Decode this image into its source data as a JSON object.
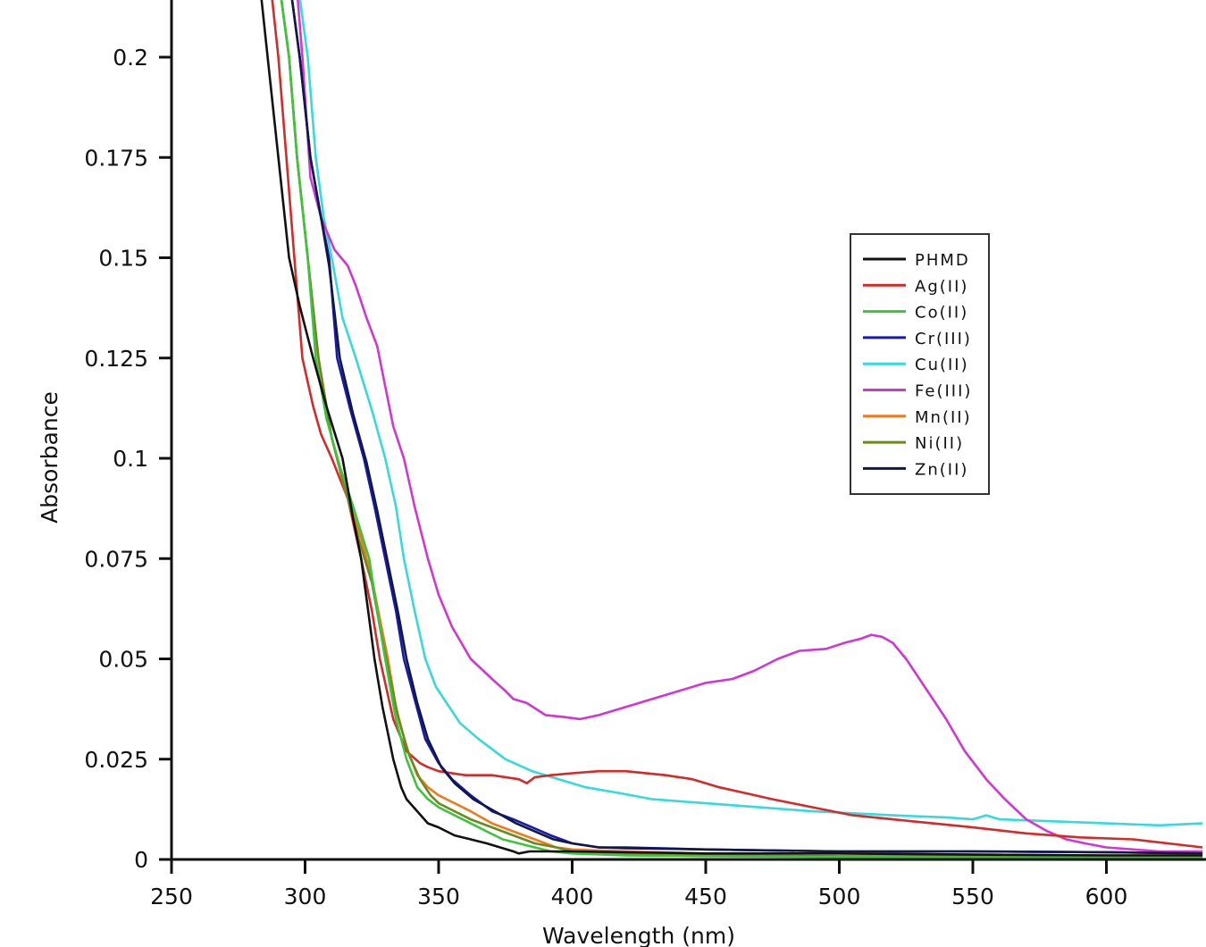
{
  "chart_data": {
    "type": "line",
    "title": "",
    "xlabel": "Wavelength (nm)",
    "ylabel": "Absorbance",
    "xlim": [
      250,
      636
    ],
    "ylim": [
      0,
      0.213
    ],
    "x_ticks": [
      250,
      300,
      350,
      400,
      450,
      500,
      550,
      600
    ],
    "x_tick_labels": [
      "250",
      "300",
      "350",
      "400",
      "450",
      "500",
      "550",
      "600"
    ],
    "y_ticks": [
      0,
      0.025,
      0.05,
      0.075,
      0.1,
      0.125,
      0.15,
      0.175,
      0.2
    ],
    "y_tick_labels": [
      "0",
      "0.025",
      "0.05",
      "0.075",
      "0.1",
      "0.125",
      "0.15",
      "0.175",
      "0.2"
    ],
    "grid": false,
    "legend_position": "upper right (inside plot)",
    "series": [
      {
        "name": "PHMD",
        "color": "#111111",
        "x": [
          282,
          286,
          290,
          294,
          298,
          303,
          308,
          314,
          318,
          321,
          324,
          326,
          329,
          333,
          336,
          338,
          342,
          346,
          350,
          356,
          362,
          368,
          373,
          378,
          380,
          384,
          390,
          400,
          450,
          500,
          550,
          600,
          636
        ],
        "y": [
          0.225,
          0.2,
          0.175,
          0.15,
          0.138,
          0.125,
          0.113,
          0.1,
          0.085,
          0.075,
          0.06,
          0.05,
          0.038,
          0.025,
          0.018,
          0.015,
          0.012,
          0.009,
          0.008,
          0.006,
          0.005,
          0.004,
          0.003,
          0.002,
          0.0015,
          0.002,
          0.002,
          0.002,
          0.0015,
          0.0015,
          0.0012,
          0.001,
          0.001
        ]
      },
      {
        "name": "Ag(II)",
        "color": "#d42a2a",
        "x": [
          286,
          290,
          293,
          296,
          299,
          303,
          306,
          310,
          316,
          321,
          325,
          328,
          333,
          338,
          343,
          346,
          350,
          360,
          370,
          380,
          383,
          386,
          392,
          400,
          410,
          420,
          435,
          445,
          455,
          465,
          475,
          490,
          505,
          520,
          535,
          550,
          570,
          590,
          610,
          636
        ],
        "y": [
          0.225,
          0.2,
          0.175,
          0.15,
          0.125,
          0.113,
          0.106,
          0.1,
          0.09,
          0.075,
          0.062,
          0.05,
          0.035,
          0.027,
          0.024,
          0.023,
          0.022,
          0.021,
          0.021,
          0.02,
          0.019,
          0.0205,
          0.021,
          0.0215,
          0.022,
          0.022,
          0.021,
          0.02,
          0.018,
          0.0165,
          0.015,
          0.013,
          0.011,
          0.01,
          0.009,
          0.008,
          0.0065,
          0.0055,
          0.005,
          0.003
        ]
      },
      {
        "name": "Co(II)",
        "color": "#3cc43c",
        "x": [
          289,
          294,
          297,
          301,
          304,
          308,
          313,
          318,
          324,
          327,
          330,
          334,
          338,
          342,
          346,
          350,
          356,
          362,
          368,
          374,
          380,
          386,
          392,
          400,
          420,
          450,
          500,
          550,
          600,
          636
        ],
        "y": [
          0.225,
          0.2,
          0.175,
          0.15,
          0.125,
          0.11,
          0.098,
          0.088,
          0.075,
          0.062,
          0.05,
          0.035,
          0.025,
          0.018,
          0.015,
          0.013,
          0.011,
          0.009,
          0.007,
          0.005,
          0.004,
          0.003,
          0.002,
          0.0015,
          0.001,
          0.0008,
          0.0006,
          0.0005,
          0.0005,
          0.0005
        ]
      },
      {
        "name": "Cr(III)",
        "color": "#1a1aa8",
        "x": [
          293,
          298,
          302,
          306,
          309,
          312,
          317,
          322,
          326,
          330,
          334,
          337,
          341,
          345,
          350,
          355,
          362,
          370,
          378,
          385,
          392,
          400,
          410,
          420,
          450,
          500,
          550,
          600,
          636
        ],
        "y": [
          0.225,
          0.2,
          0.175,
          0.16,
          0.15,
          0.125,
          0.112,
          0.1,
          0.088,
          0.075,
          0.062,
          0.05,
          0.04,
          0.03,
          0.024,
          0.02,
          0.016,
          0.012,
          0.01,
          0.008,
          0.006,
          0.004,
          0.003,
          0.003,
          0.0025,
          0.002,
          0.002,
          0.0018,
          0.0015
        ]
      },
      {
        "name": "Cu(II)",
        "color": "#36dada",
        "x": [
          296,
          301,
          304,
          307,
          310,
          314,
          319,
          325,
          330,
          334,
          337,
          341,
          345,
          349,
          352,
          358,
          365,
          375,
          385,
          395,
          405,
          418,
          430,
          450,
          470,
          490,
          520,
          540,
          550,
          555,
          560,
          580,
          600,
          620,
          636
        ],
        "y": [
          0.225,
          0.2,
          0.175,
          0.16,
          0.15,
          0.135,
          0.125,
          0.112,
          0.1,
          0.088,
          0.075,
          0.062,
          0.05,
          0.043,
          0.04,
          0.034,
          0.03,
          0.025,
          0.022,
          0.02,
          0.018,
          0.0165,
          0.015,
          0.014,
          0.013,
          0.012,
          0.011,
          0.0105,
          0.01,
          0.011,
          0.01,
          0.0095,
          0.009,
          0.0085,
          0.009
        ]
      },
      {
        "name": "Fe(III)",
        "color": "#d236d2",
        "x": [
          296,
          299,
          302,
          306,
          311,
          316,
          319,
          323,
          327,
          330,
          333,
          337,
          341,
          346,
          350,
          355,
          362,
          370,
          375,
          378,
          383,
          390,
          397,
          403,
          410,
          420,
          430,
          440,
          450,
          460,
          468,
          477,
          485,
          495,
          502,
          508,
          512,
          516,
          520,
          525,
          532,
          540,
          547,
          555,
          562,
          570,
          578,
          585,
          592,
          600,
          610,
          620,
          636
        ],
        "y": [
          0.225,
          0.2,
          0.17,
          0.16,
          0.152,
          0.148,
          0.143,
          0.135,
          0.128,
          0.118,
          0.108,
          0.1,
          0.088,
          0.075,
          0.066,
          0.058,
          0.05,
          0.045,
          0.042,
          0.04,
          0.039,
          0.036,
          0.0355,
          0.035,
          0.036,
          0.038,
          0.04,
          0.042,
          0.044,
          0.045,
          0.047,
          0.05,
          0.052,
          0.0525,
          0.054,
          0.055,
          0.056,
          0.0555,
          0.054,
          0.05,
          0.043,
          0.035,
          0.027,
          0.02,
          0.015,
          0.01,
          0.007,
          0.005,
          0.004,
          0.003,
          0.0025,
          0.002,
          0.002
        ]
      },
      {
        "name": "Mn(II)",
        "color": "#f07a1e",
        "x": [
          289,
          294,
          297,
          301,
          305,
          310,
          315,
          321,
          325,
          328,
          331,
          334,
          338,
          342,
          346,
          350,
          356,
          362,
          370,
          378,
          386,
          394,
          400,
          420,
          450,
          500,
          550,
          600,
          636
        ],
        "y": [
          0.225,
          0.2,
          0.175,
          0.15,
          0.125,
          0.105,
          0.092,
          0.08,
          0.07,
          0.06,
          0.05,
          0.038,
          0.028,
          0.021,
          0.018,
          0.016,
          0.014,
          0.012,
          0.009,
          0.007,
          0.005,
          0.003,
          0.0025,
          0.002,
          0.0015,
          0.0015,
          0.0012,
          0.001,
          0.001
        ]
      },
      {
        "name": "Ni(II)",
        "color": "#6b8a1e",
        "x": [
          289,
          294,
          297,
          301,
          305,
          310,
          314,
          320,
          325,
          328,
          331,
          335,
          339,
          343,
          347,
          350,
          356,
          362,
          370,
          378,
          386,
          394,
          400,
          420,
          450,
          500,
          550,
          600,
          636
        ],
        "y": [
          0.225,
          0.2,
          0.175,
          0.15,
          0.125,
          0.105,
          0.095,
          0.08,
          0.069,
          0.058,
          0.048,
          0.035,
          0.026,
          0.02,
          0.016,
          0.014,
          0.012,
          0.01,
          0.008,
          0.006,
          0.004,
          0.003,
          0.002,
          0.0015,
          0.001,
          0.0008,
          0.0008,
          0.0006,
          0.0006
        ]
      },
      {
        "name": "Zn(II)",
        "color": "#101848",
        "x": [
          293,
          298,
          302,
          306,
          309,
          313,
          318,
          323,
          327,
          331,
          335,
          338,
          342,
          346,
          351,
          356,
          363,
          371,
          379,
          386,
          393,
          400,
          410,
          420,
          450,
          500,
          550,
          600,
          636
        ],
        "y": [
          0.225,
          0.2,
          0.175,
          0.16,
          0.148,
          0.125,
          0.111,
          0.099,
          0.087,
          0.074,
          0.061,
          0.05,
          0.039,
          0.03,
          0.023,
          0.019,
          0.015,
          0.012,
          0.009,
          0.007,
          0.005,
          0.004,
          0.003,
          0.0028,
          0.0025,
          0.002,
          0.002,
          0.0018,
          0.0015
        ]
      }
    ]
  },
  "legend": {
    "items": [
      "PHMD",
      "Ag(II)",
      "Co(II)",
      "Cr(III)",
      "Cu(II)",
      "Fe(III)",
      "Mn(II)",
      "Ni(II)",
      "Zn(II)"
    ]
  }
}
